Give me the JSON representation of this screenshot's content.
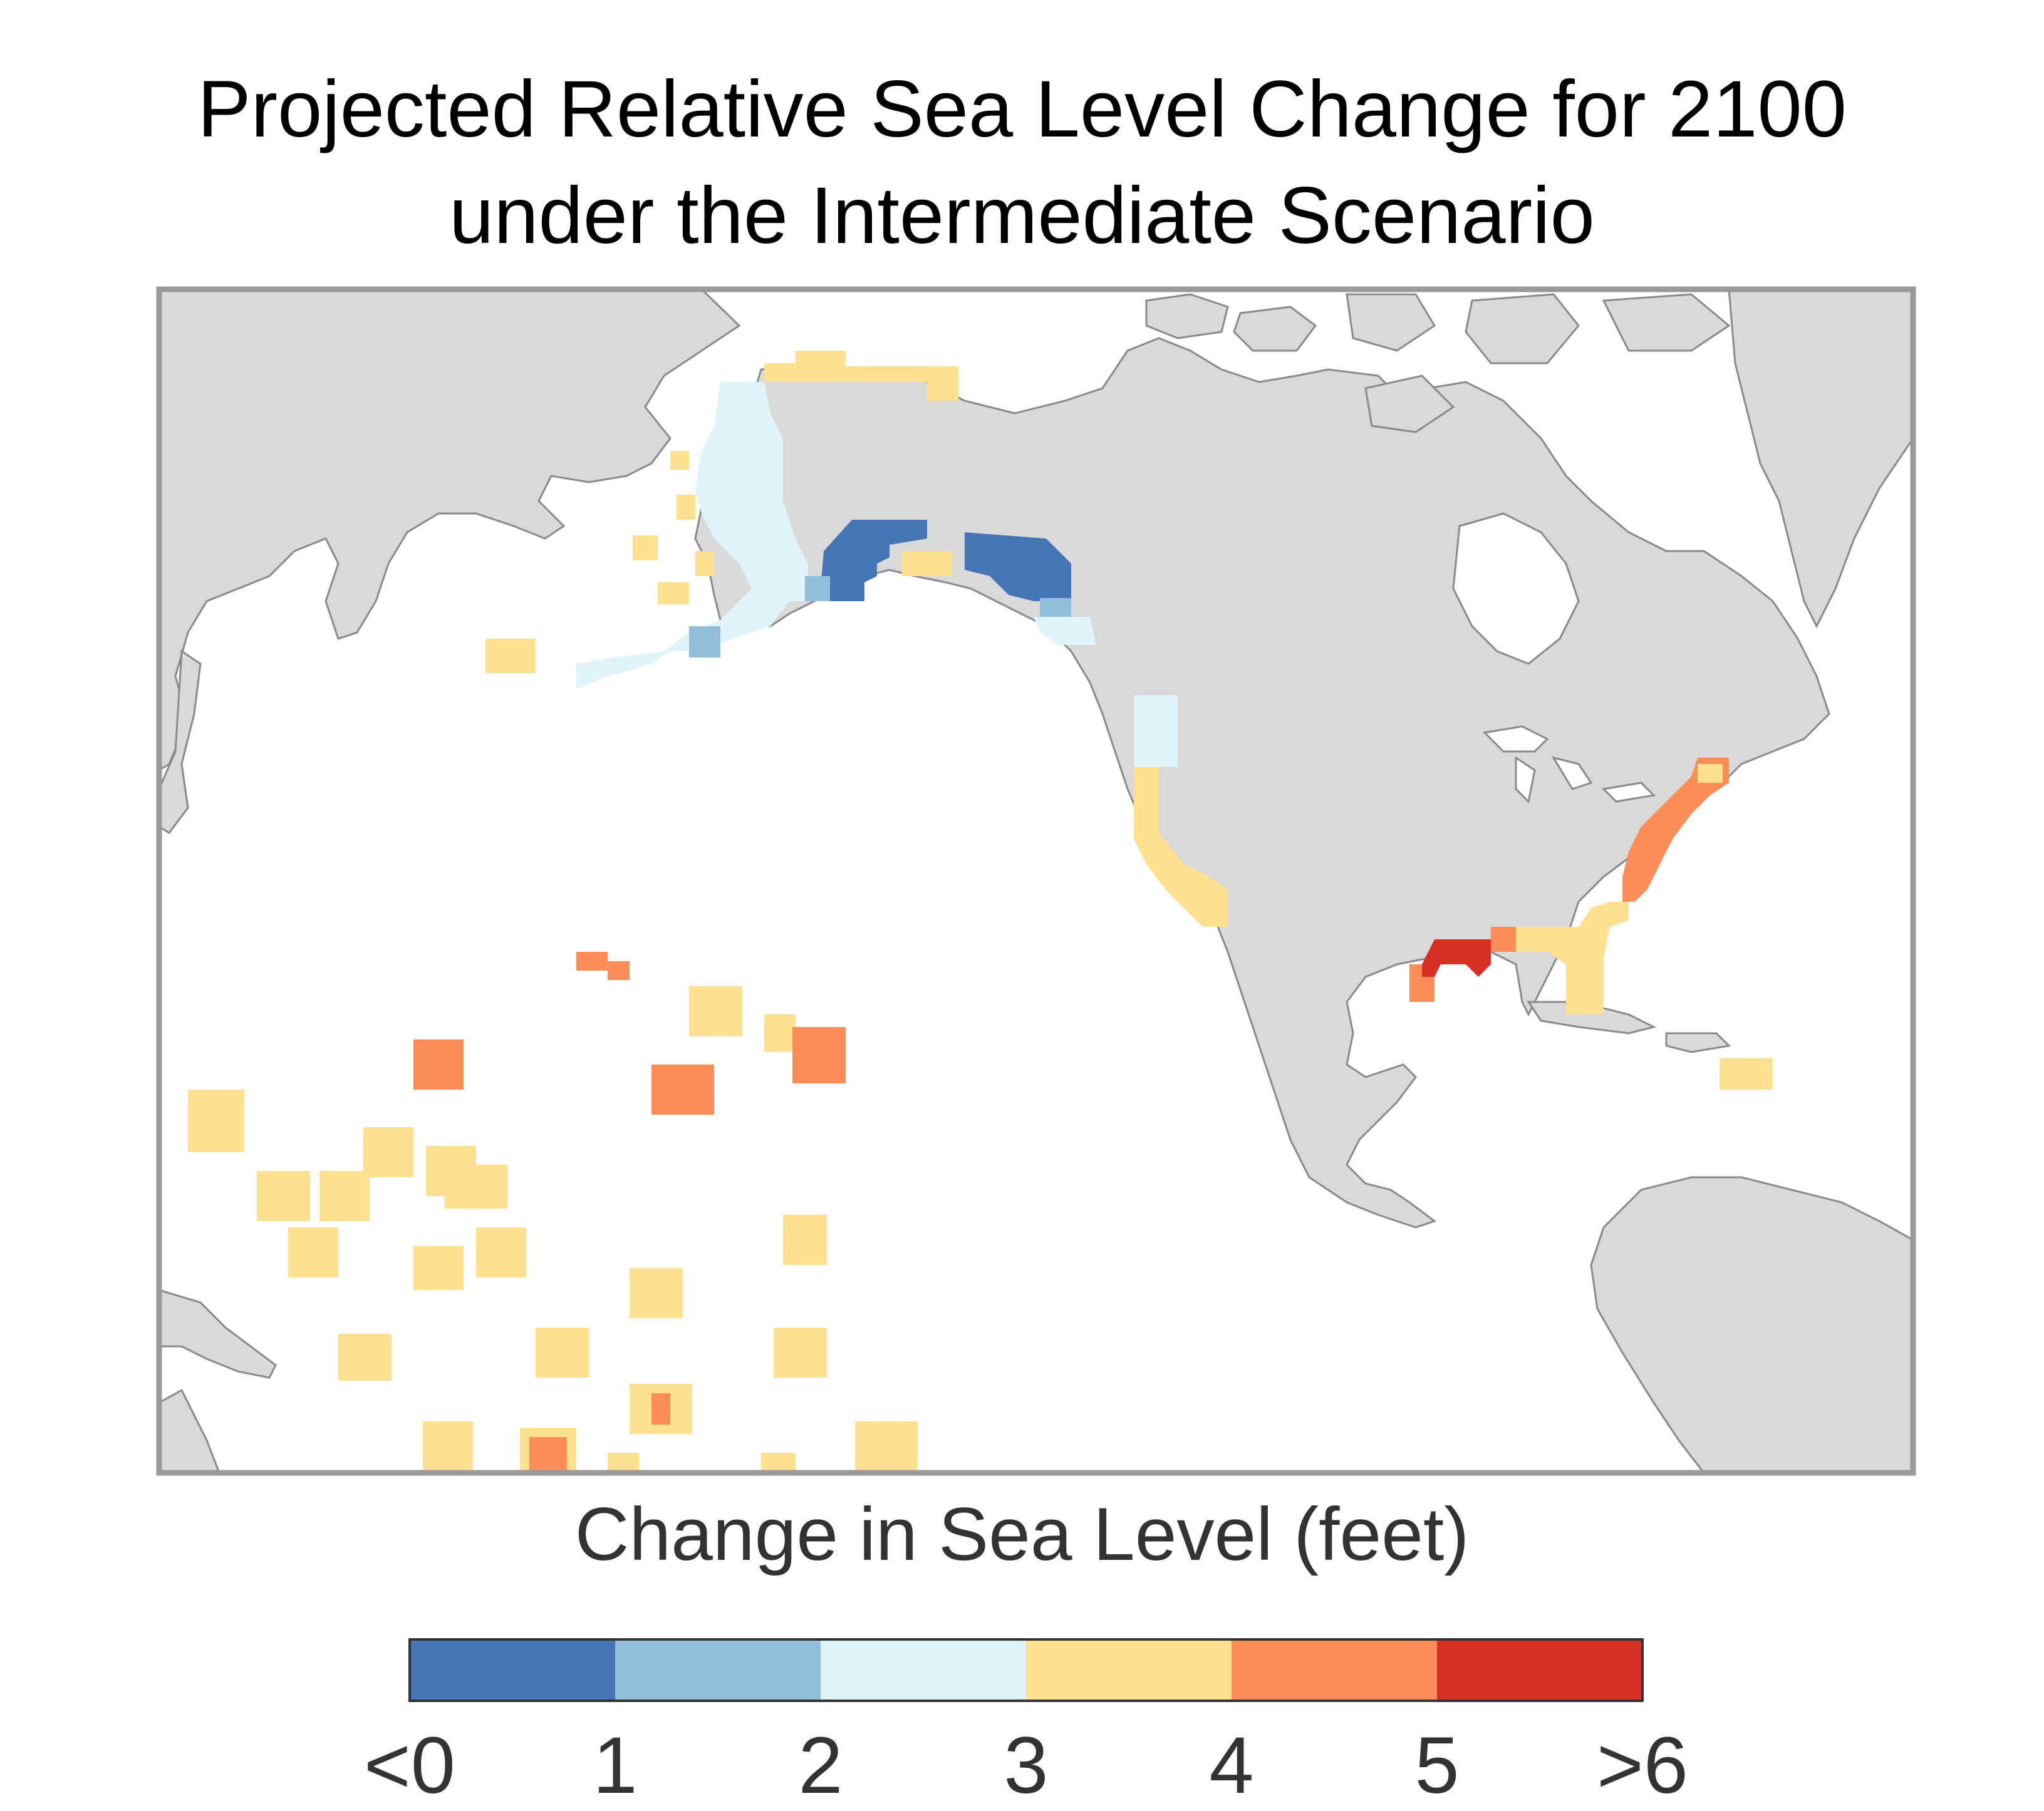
{
  "title_line1": "Projected Relative Sea Level Change for 2100",
  "title_line2": "under the Intermediate Scenario",
  "legend": {
    "title": "Change in Sea Level (feet)",
    "tick_labels": [
      "<0",
      "1",
      "2",
      "3",
      "4",
      "5",
      ">6"
    ],
    "bins": [
      {
        "range": "<0 to 1",
        "color": "#4575b4"
      },
      {
        "range": "1 to 2",
        "color": "#91bfdb"
      },
      {
        "range": "2 to 3",
        "color": "#e0f3f8"
      },
      {
        "range": "3 to 4",
        "color": "#fee090"
      },
      {
        "range": "4 to 5",
        "color": "#fc8d59"
      },
      {
        "range": "5 to >6",
        "color": "#d73027"
      }
    ]
  },
  "map": {
    "land_color": "#d9d9d9",
    "coastline_color": "#8a8a8a",
    "ocean_color": "#ffffff",
    "frame_color": "#999999",
    "regions": [
      {
        "name": "Alaska south coast",
        "bin": "<0 to 1"
      },
      {
        "name": "Alaska west coast",
        "bin": "2 to 3"
      },
      {
        "name": "Alaska north coast",
        "bin": "3 to 4"
      },
      {
        "name": "Pacific Northwest",
        "bin": "2 to 3"
      },
      {
        "name": "California",
        "bin": "3 to 4"
      },
      {
        "name": "Florida",
        "bin": "3 to 4"
      },
      {
        "name": "US Atlantic coast",
        "bin": "4 to 5"
      },
      {
        "name": "Western Gulf coast",
        "bin": "5 to >6"
      },
      {
        "name": "Caribbean",
        "bin": "3 to 4"
      },
      {
        "name": "Hawaii",
        "bin": "4 to 5"
      },
      {
        "name": "Pacific islands",
        "bin": "3 to 4"
      }
    ]
  }
}
